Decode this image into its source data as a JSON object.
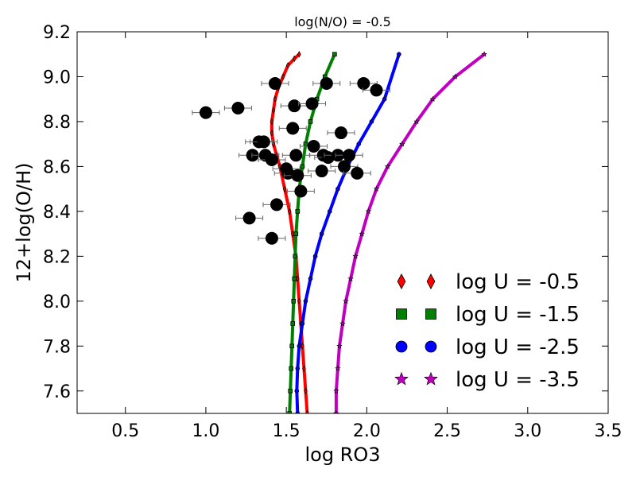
{
  "chart_data": {
    "type": "line",
    "title": "log(N/O) = -0.5",
    "xlabel": "log RO3",
    "ylabel": "12+log(O/H)",
    "xlim": [
      0.2,
      3.5
    ],
    "ylim": [
      7.5,
      9.2
    ],
    "xticks": [
      0.5,
      1.0,
      1.5,
      2.0,
      2.5,
      3.0,
      3.5
    ],
    "xtick_labels": [
      "0.5",
      "1.0",
      "1.5",
      "2.0",
      "2.5",
      "3.0",
      "3.5"
    ],
    "yticks": [
      7.6,
      7.8,
      8.0,
      8.2,
      8.4,
      8.6,
      8.8,
      9.0,
      9.2
    ],
    "ytick_labels": [
      "7.6",
      "7.8",
      "8.0",
      "8.2",
      "8.4",
      "8.6",
      "8.8",
      "9.0",
      "9.2"
    ],
    "grid": false,
    "legend_position": "bottom-right",
    "series": [
      {
        "name": "log U = -0.5",
        "color": "#ff0000",
        "marker": "diamond",
        "x": [
          1.63,
          1.62,
          1.61,
          1.6,
          1.59,
          1.58,
          1.57,
          1.56,
          1.54,
          1.52,
          1.49,
          1.46,
          1.44,
          1.42,
          1.41,
          1.41,
          1.42,
          1.43,
          1.45,
          1.48,
          1.51,
          1.55,
          1.58
        ],
        "y": [
          7.5,
          7.6,
          7.7,
          7.8,
          7.9,
          8.0,
          8.1,
          8.2,
          8.3,
          8.4,
          8.5,
          8.6,
          8.65,
          8.7,
          8.75,
          8.8,
          8.85,
          8.9,
          8.95,
          9.0,
          9.05,
          9.08,
          9.1
        ]
      },
      {
        "name": "log U = -1.5",
        "color": "#008000",
        "marker": "square",
        "x": [
          1.52,
          1.525,
          1.53,
          1.535,
          1.54,
          1.545,
          1.55,
          1.555,
          1.56,
          1.57,
          1.58,
          1.6,
          1.62,
          1.65,
          1.69,
          1.74,
          1.8
        ],
        "y": [
          7.5,
          7.6,
          7.7,
          7.8,
          7.9,
          8.0,
          8.1,
          8.2,
          8.3,
          8.4,
          8.5,
          8.6,
          8.7,
          8.8,
          8.9,
          9.0,
          9.1
        ]
      },
      {
        "name": "log U = -2.5",
        "color": "#0000ff",
        "marker": "circle",
        "x": [
          1.57,
          1.565,
          1.57,
          1.58,
          1.6,
          1.62,
          1.65,
          1.68,
          1.72,
          1.77,
          1.82,
          1.88,
          1.95,
          2.03,
          2.11,
          2.2
        ],
        "y": [
          7.5,
          7.6,
          7.7,
          7.8,
          7.9,
          8.0,
          8.1,
          8.2,
          8.3,
          8.4,
          8.5,
          8.6,
          8.7,
          8.8,
          8.9,
          9.1
        ]
      },
      {
        "name": "log U = -3.5",
        "color": "#bf00bf",
        "marker": "star",
        "x": [
          1.81,
          1.81,
          1.82,
          1.83,
          1.85,
          1.87,
          1.9,
          1.93,
          1.97,
          2.01,
          2.06,
          2.13,
          2.22,
          2.31,
          2.41,
          2.55,
          2.73
        ],
        "y": [
          7.5,
          7.6,
          7.7,
          7.8,
          7.9,
          8.0,
          8.1,
          8.2,
          8.3,
          8.4,
          8.5,
          8.6,
          8.7,
          8.8,
          8.9,
          9.0,
          9.1
        ]
      }
    ],
    "observations": {
      "name": "data points",
      "color": "#000000",
      "points": [
        {
          "x": 1.0,
          "y": 8.84
        },
        {
          "x": 1.2,
          "y": 8.86
        },
        {
          "x": 1.43,
          "y": 8.97
        },
        {
          "x": 1.55,
          "y": 8.87
        },
        {
          "x": 1.66,
          "y": 8.88
        },
        {
          "x": 1.75,
          "y": 8.97
        },
        {
          "x": 1.98,
          "y": 8.97
        },
        {
          "x": 2.06,
          "y": 8.94
        },
        {
          "x": 1.54,
          "y": 8.77
        },
        {
          "x": 1.84,
          "y": 8.75
        },
        {
          "x": 1.33,
          "y": 8.71
        },
        {
          "x": 1.36,
          "y": 8.71
        },
        {
          "x": 1.67,
          "y": 8.69
        },
        {
          "x": 1.29,
          "y": 8.65
        },
        {
          "x": 1.37,
          "y": 8.65
        },
        {
          "x": 1.41,
          "y": 8.63
        },
        {
          "x": 1.56,
          "y": 8.65
        },
        {
          "x": 1.73,
          "y": 8.65
        },
        {
          "x": 1.76,
          "y": 8.64
        },
        {
          "x": 1.82,
          "y": 8.65
        },
        {
          "x": 1.89,
          "y": 8.65
        },
        {
          "x": 1.5,
          "y": 8.59
        },
        {
          "x": 1.51,
          "y": 8.57
        },
        {
          "x": 1.57,
          "y": 8.56
        },
        {
          "x": 1.72,
          "y": 8.58
        },
        {
          "x": 1.86,
          "y": 8.6
        },
        {
          "x": 1.94,
          "y": 8.57
        },
        {
          "x": 1.59,
          "y": 8.49
        },
        {
          "x": 1.44,
          "y": 8.43
        },
        {
          "x": 1.27,
          "y": 8.37
        },
        {
          "x": 1.41,
          "y": 8.28
        }
      ]
    },
    "legend": [
      {
        "label": "log U = -0.5",
        "marker": "diamond",
        "color": "#ff0000"
      },
      {
        "label": "log U = -1.5",
        "marker": "square",
        "color": "#008000"
      },
      {
        "label": "log U = -2.5",
        "marker": "circle",
        "color": "#0000ff"
      },
      {
        "label": "log U = -3.5",
        "marker": "star",
        "color": "#bf00bf"
      }
    ]
  }
}
